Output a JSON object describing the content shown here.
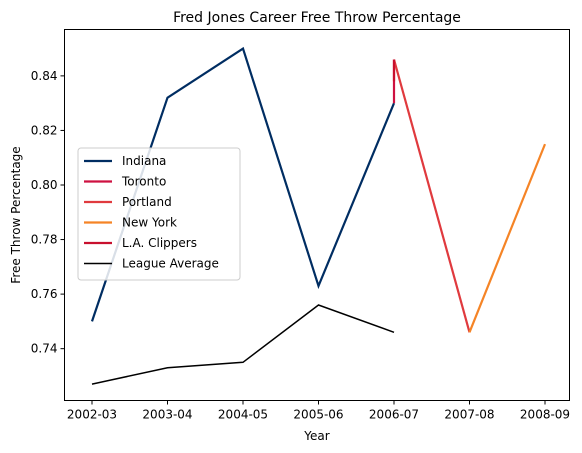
{
  "chart_data": {
    "type": "line",
    "title": "Fred Jones  Career Free Throw Percentage",
    "xlabel": "Year",
    "ylabel": "Free Throw Percentage",
    "categories": [
      "2002-03",
      "2003-04",
      "2004-05",
      "2005-06",
      "2006-07",
      "2007-08",
      "2008-09"
    ],
    "ylim": [
      0.721,
      0.857
    ],
    "yticks": [
      0.74,
      0.76,
      0.78,
      0.8,
      0.82,
      0.84
    ],
    "ytick_labels": [
      "0.74",
      "0.76",
      "0.78",
      "0.80",
      "0.82",
      "0.84"
    ],
    "grid": false,
    "legend_position": "center-left",
    "series": [
      {
        "name": "Indiana",
        "color": "#002d62",
        "points": [
          [
            0,
            0.75
          ],
          [
            1,
            0.832
          ],
          [
            2,
            0.85
          ],
          [
            3,
            0.763
          ],
          [
            4,
            0.83
          ]
        ]
      },
      {
        "name": "Toronto",
        "color": "#ce1141",
        "points": [
          [
            4,
            0.83
          ],
          [
            4,
            0.846
          ]
        ]
      },
      {
        "name": "Portland",
        "color": "#e03a3e",
        "points": [
          [
            4,
            0.846
          ],
          [
            5,
            0.746
          ]
        ]
      },
      {
        "name": "New York",
        "color": "#f58426",
        "points": [
          [
            5,
            0.746
          ],
          [
            6,
            0.815
          ]
        ]
      },
      {
        "name": "L.A. Clippers",
        "color": "#c8102e",
        "points": [
          [
            4,
            0.846
          ],
          [
            4,
            0.838
          ]
        ]
      },
      {
        "name": "League Average",
        "color": "#000000",
        "points": [
          [
            0,
            0.727
          ],
          [
            1,
            0.733
          ],
          [
            2,
            0.735
          ],
          [
            3,
            0.756
          ],
          [
            4,
            0.746
          ]
        ]
      }
    ]
  }
}
